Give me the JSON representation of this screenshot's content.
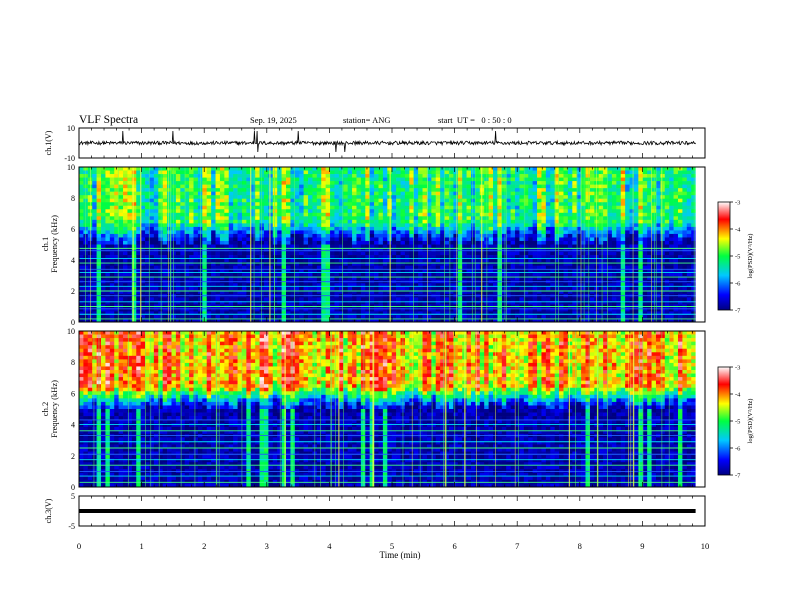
{
  "header": {
    "title": "VLF Spectra",
    "date": "Sep. 19, 2025",
    "station": "station= ANG",
    "start_ut": "start  UT =   0 : 50 : 0"
  },
  "chart_data": [
    {
      "type": "line",
      "name": "ch1-waveform",
      "ylabel": "ch.1(V)",
      "ylim": [
        -10,
        10
      ],
      "yticks": [
        "10",
        "-10"
      ],
      "baseline": 0,
      "noise_amplitude": 1.2,
      "spikes_at_min": [
        0.7,
        1.5,
        2.8,
        2.85,
        3.5,
        4.1,
        4.25,
        6.65
      ]
    },
    {
      "type": "heatmap",
      "name": "ch1-spectrogram",
      "ylabel": "Frequency (kHz)",
      "channel_label": "ch.1",
      "ylim": [
        0,
        10
      ],
      "xlim": [
        0,
        9.85
      ],
      "yticks": [
        "0",
        "2",
        "4",
        "6",
        "8",
        "10"
      ],
      "colorbar": {
        "label": "log(PSD)(V²/Hz)",
        "range": [
          -7,
          -3
        ],
        "ticks": [
          "-3",
          "-4",
          "-5",
          "-6",
          "-7"
        ]
      },
      "mean_level_top": -5.0,
      "mean_level_low": -6.8,
      "noise_line_khz": [
        0.2,
        0.5,
        0.85,
        1.0,
        1.3,
        1.7,
        2.0,
        2.3,
        2.6,
        2.9,
        3.2,
        3.4,
        3.8,
        4.1,
        4.6,
        4.75
      ]
    },
    {
      "type": "heatmap",
      "name": "ch2-spectrogram",
      "ylabel": "Frequency (kHz)",
      "channel_label": "ch.2",
      "ylim": [
        0,
        10
      ],
      "xlim": [
        0,
        9.85
      ],
      "yticks": [
        "0",
        "2",
        "4",
        "6",
        "8",
        "10"
      ],
      "colorbar": {
        "label": "log(PSD)(V²/Hz)",
        "range": [
          -7,
          -3
        ],
        "ticks": [
          "-3",
          "-4",
          "-5",
          "-6",
          "-7"
        ]
      },
      "mean_level_top": -4.1,
      "mean_level_low": -6.8,
      "noise_line_khz": [
        0.3,
        0.7,
        1.0,
        1.4,
        1.75,
        2.1,
        2.5,
        2.9,
        3.3,
        3.6,
        4.0,
        4.3
      ]
    },
    {
      "type": "line",
      "name": "ch3-waveform",
      "ylabel": "ch.3(V)",
      "ylim": [
        -5,
        5
      ],
      "yticks": [
        "5",
        "-5"
      ],
      "baseline": 0
    }
  ],
  "xaxis": {
    "label": "Time (min)",
    "range": [
      0,
      10
    ],
    "ticks": [
      "0",
      "1",
      "2",
      "3",
      "4",
      "5",
      "6",
      "7",
      "8",
      "9",
      "10"
    ]
  }
}
